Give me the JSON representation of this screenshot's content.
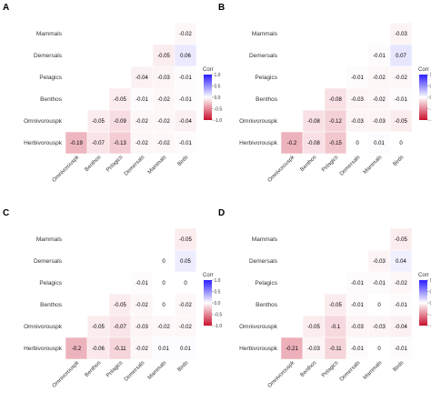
{
  "chart_data": [
    {
      "type": "heatmap",
      "panel": "A",
      "rows": [
        "Mammals",
        "Demersals",
        "Pelagics",
        "Benthos",
        "Omnivorouspk",
        "Herbivorouspk"
      ],
      "columns": [
        "Omnivorouspk",
        "Benthos",
        "Pelagics",
        "Demersals",
        "Mammals",
        "Birds"
      ],
      "cells": [
        {
          "row": "Mammals",
          "col": "Birds",
          "label": "-0.02",
          "value": -0.02
        },
        {
          "row": "Demersals",
          "col": "Mammals",
          "label": "-0.05",
          "value": -0.05
        },
        {
          "row": "Demersals",
          "col": "Birds",
          "label": "0.06",
          "value": 0.06
        },
        {
          "row": "Pelagics",
          "col": "Demersals",
          "label": "-0.04",
          "value": -0.04
        },
        {
          "row": "Pelagics",
          "col": "Mammals",
          "label": "-0.03",
          "value": -0.03
        },
        {
          "row": "Pelagics",
          "col": "Birds",
          "label": "-0.01",
          "value": -0.01
        },
        {
          "row": "Benthos",
          "col": "Pelagics",
          "label": "-0.05",
          "value": -0.05
        },
        {
          "row": "Benthos",
          "col": "Demersals",
          "label": "-0.01",
          "value": -0.01
        },
        {
          "row": "Benthos",
          "col": "Mammals",
          "label": "-0.02",
          "value": -0.02
        },
        {
          "row": "Benthos",
          "col": "Birds",
          "label": "-0.01",
          "value": -0.01
        },
        {
          "row": "Omnivorouspk",
          "col": "Benthos",
          "label": "-0.05",
          "value": -0.05
        },
        {
          "row": "Omnivorouspk",
          "col": "Pelagics",
          "label": "-0.09",
          "value": -0.09
        },
        {
          "row": "Omnivorouspk",
          "col": "Demersals",
          "label": "-0.02",
          "value": -0.02
        },
        {
          "row": "Omnivorouspk",
          "col": "Mammals",
          "label": "-0.02",
          "value": -0.02
        },
        {
          "row": "Omnivorouspk",
          "col": "Birds",
          "label": "-0.04",
          "value": -0.04
        },
        {
          "row": "Herbivorouspk",
          "col": "Omnivorouspk",
          "label": "-0.19",
          "value": -0.19
        },
        {
          "row": "Herbivorouspk",
          "col": "Benthos",
          "label": "-0.07",
          "value": -0.07
        },
        {
          "row": "Herbivorouspk",
          "col": "Pelagics",
          "label": "-0.13",
          "value": -0.13
        },
        {
          "row": "Herbivorouspk",
          "col": "Demersals",
          "label": "-0.02",
          "value": -0.02
        },
        {
          "row": "Herbivorouspk",
          "col": "Mammals",
          "label": "-0.02",
          "value": -0.02
        },
        {
          "row": "Herbivorouspk",
          "col": "Birds",
          "label": "-0.01",
          "value": -0.01
        }
      ],
      "legend": {
        "title": "Corr",
        "ticks": [
          "1.0",
          "0.5",
          "0.0",
          "-0.5",
          "-1.0"
        ],
        "range": [
          -1,
          1
        ]
      }
    },
    {
      "type": "heatmap",
      "panel": "B",
      "rows": [
        "Mammals",
        "Demersals",
        "Pelagics",
        "Benthos",
        "Omnivorouspk",
        "Herbivorouspk"
      ],
      "columns": [
        "Omnivorouspk",
        "Benthos",
        "Pelagics",
        "Demersals",
        "Mammals",
        "Birds"
      ],
      "cells": [
        {
          "row": "Mammals",
          "col": "Birds",
          "label": "-0.03",
          "value": -0.03
        },
        {
          "row": "Demersals",
          "col": "Mammals",
          "label": "-0.01",
          "value": -0.01
        },
        {
          "row": "Demersals",
          "col": "Birds",
          "label": "0.07",
          "value": 0.07
        },
        {
          "row": "Pelagics",
          "col": "Demersals",
          "label": "-0.01",
          "value": -0.01
        },
        {
          "row": "Pelagics",
          "col": "Mammals",
          "label": "-0.02",
          "value": -0.02
        },
        {
          "row": "Pelagics",
          "col": "Birds",
          "label": "-0.02",
          "value": -0.02
        },
        {
          "row": "Benthos",
          "col": "Pelagics",
          "label": "-0.08",
          "value": -0.08
        },
        {
          "row": "Benthos",
          "col": "Demersals",
          "label": "-0.03",
          "value": -0.03
        },
        {
          "row": "Benthos",
          "col": "Mammals",
          "label": "-0.02",
          "value": -0.02
        },
        {
          "row": "Benthos",
          "col": "Birds",
          "label": "-0.01",
          "value": -0.01
        },
        {
          "row": "Omnivorouspk",
          "col": "Benthos",
          "label": "-0.08",
          "value": -0.08
        },
        {
          "row": "Omnivorouspk",
          "col": "Pelagics",
          "label": "-0.12",
          "value": -0.12
        },
        {
          "row": "Omnivorouspk",
          "col": "Demersals",
          "label": "-0.03",
          "value": -0.03
        },
        {
          "row": "Omnivorouspk",
          "col": "Mammals",
          "label": "-0.03",
          "value": -0.03
        },
        {
          "row": "Omnivorouspk",
          "col": "Birds",
          "label": "-0.05",
          "value": -0.05
        },
        {
          "row": "Herbivorouspk",
          "col": "Omnivorouspk",
          "label": "-0.2",
          "value": -0.2
        },
        {
          "row": "Herbivorouspk",
          "col": "Benthos",
          "label": "-0.08",
          "value": -0.08
        },
        {
          "row": "Herbivorouspk",
          "col": "Pelagics",
          "label": "-0.15",
          "value": -0.15
        },
        {
          "row": "Herbivorouspk",
          "col": "Demersals",
          "label": "0",
          "value": 0
        },
        {
          "row": "Herbivorouspk",
          "col": "Mammals",
          "label": "0.01",
          "value": 0.01
        },
        {
          "row": "Herbivorouspk",
          "col": "Birds",
          "label": "0",
          "value": 0
        }
      ],
      "legend": {
        "title": "Corr",
        "ticks": [
          "1.0",
          "0.5",
          "0.0",
          "-0.5",
          "-1.0"
        ],
        "range": [
          -1,
          1
        ]
      }
    },
    {
      "type": "heatmap",
      "panel": "C",
      "rows": [
        "Mammals",
        "Demersals",
        "Pelagics",
        "Benthos",
        "Omnivorouspk",
        "Herbivorouspk"
      ],
      "columns": [
        "Omnivorouspk",
        "Benthos",
        "Pelagics",
        "Demersals",
        "Mammals",
        "Birds"
      ],
      "cells": [
        {
          "row": "Mammals",
          "col": "Birds",
          "label": "-0.05",
          "value": -0.05
        },
        {
          "row": "Demersals",
          "col": "Mammals",
          "label": "0",
          "value": 0
        },
        {
          "row": "Demersals",
          "col": "Birds",
          "label": "0.05",
          "value": 0.05
        },
        {
          "row": "Pelagics",
          "col": "Demersals",
          "label": "-0.01",
          "value": -0.01
        },
        {
          "row": "Pelagics",
          "col": "Mammals",
          "label": "0",
          "value": 0
        },
        {
          "row": "Pelagics",
          "col": "Birds",
          "label": "0",
          "value": 0
        },
        {
          "row": "Benthos",
          "col": "Pelagics",
          "label": "-0.05",
          "value": -0.05
        },
        {
          "row": "Benthos",
          "col": "Demersals",
          "label": "-0.02",
          "value": -0.02
        },
        {
          "row": "Benthos",
          "col": "Mammals",
          "label": "0",
          "value": 0
        },
        {
          "row": "Benthos",
          "col": "Birds",
          "label": "-0.02",
          "value": -0.02
        },
        {
          "row": "Omnivorouspk",
          "col": "Benthos",
          "label": "-0.05",
          "value": -0.05
        },
        {
          "row": "Omnivorouspk",
          "col": "Pelagics",
          "label": "-0.07",
          "value": -0.07
        },
        {
          "row": "Omnivorouspk",
          "col": "Demersals",
          "label": "-0.03",
          "value": -0.03
        },
        {
          "row": "Omnivorouspk",
          "col": "Mammals",
          "label": "-0.02",
          "value": -0.02
        },
        {
          "row": "Omnivorouspk",
          "col": "Birds",
          "label": "-0.02",
          "value": -0.02
        },
        {
          "row": "Herbivorouspk",
          "col": "Omnivorouspk",
          "label": "-0.2",
          "value": -0.2
        },
        {
          "row": "Herbivorouspk",
          "col": "Benthos",
          "label": "-0.06",
          "value": -0.06
        },
        {
          "row": "Herbivorouspk",
          "col": "Pelagics",
          "label": "-0.11",
          "value": -0.11
        },
        {
          "row": "Herbivorouspk",
          "col": "Demersals",
          "label": "-0.02",
          "value": -0.02
        },
        {
          "row": "Herbivorouspk",
          "col": "Mammals",
          "label": "0.01",
          "value": 0.01
        },
        {
          "row": "Herbivorouspk",
          "col": "Birds",
          "label": "0.01",
          "value": 0.01
        }
      ],
      "legend": {
        "title": "Corr",
        "ticks": [
          "1.0",
          "0.5",
          "0.0",
          "-0.5",
          "-1.0"
        ],
        "range": [
          -1,
          1
        ]
      }
    },
    {
      "type": "heatmap",
      "panel": "D",
      "rows": [
        "Mammals",
        "Demersals",
        "Pelagics",
        "Benthos",
        "Omnivorouspk",
        "Herbivorouspk"
      ],
      "columns": [
        "Omnivorouspk",
        "Benthos",
        "Pelagics",
        "Demersals",
        "Mammals",
        "Birds"
      ],
      "cells": [
        {
          "row": "Mammals",
          "col": "Birds",
          "label": "-0.05",
          "value": -0.05
        },
        {
          "row": "Demersals",
          "col": "Mammals",
          "label": "-0.03",
          "value": -0.03
        },
        {
          "row": "Demersals",
          "col": "Birds",
          "label": "0.04",
          "value": 0.04
        },
        {
          "row": "Pelagics",
          "col": "Demersals",
          "label": "-0.01",
          "value": -0.01
        },
        {
          "row": "Pelagics",
          "col": "Mammals",
          "label": "-0.01",
          "value": -0.01
        },
        {
          "row": "Pelagics",
          "col": "Birds",
          "label": "-0.02",
          "value": -0.02
        },
        {
          "row": "Benthos",
          "col": "Pelagics",
          "label": "-0.05",
          "value": -0.05
        },
        {
          "row": "Benthos",
          "col": "Demersals",
          "label": "-0.01",
          "value": -0.01
        },
        {
          "row": "Benthos",
          "col": "Mammals",
          "label": "0",
          "value": 0
        },
        {
          "row": "Benthos",
          "col": "Birds",
          "label": "-0.01",
          "value": -0.01
        },
        {
          "row": "Omnivorouspk",
          "col": "Benthos",
          "label": "-0.05",
          "value": -0.05
        },
        {
          "row": "Omnivorouspk",
          "col": "Pelagics",
          "label": "-0.1",
          "value": -0.1
        },
        {
          "row": "Omnivorouspk",
          "col": "Demersals",
          "label": "-0.03",
          "value": -0.03
        },
        {
          "row": "Omnivorouspk",
          "col": "Mammals",
          "label": "-0.03",
          "value": -0.03
        },
        {
          "row": "Omnivorouspk",
          "col": "Birds",
          "label": "-0.04",
          "value": -0.04
        },
        {
          "row": "Herbivorouspk",
          "col": "Omnivorouspk",
          "label": "-0.21",
          "value": -0.21
        },
        {
          "row": "Herbivorouspk",
          "col": "Benthos",
          "label": "-0.03",
          "value": -0.03
        },
        {
          "row": "Herbivorouspk",
          "col": "Pelagics",
          "label": "-0.11",
          "value": -0.11
        },
        {
          "row": "Herbivorouspk",
          "col": "Demersals",
          "label": "-0.01",
          "value": -0.01
        },
        {
          "row": "Herbivorouspk",
          "col": "Mammals",
          "label": "0",
          "value": 0
        },
        {
          "row": "Herbivorouspk",
          "col": "Birds",
          "label": "-0.01",
          "value": -0.01
        }
      ],
      "legend": {
        "title": "Corr",
        "ticks": [
          "1.0",
          "0.5",
          "0.0",
          "-0.5",
          "-1.0"
        ],
        "range": [
          -1,
          1
        ]
      }
    }
  ],
  "colors": {
    "positive": "#2b1cff",
    "neutral": "#ffffff",
    "negative": "#c8102e"
  }
}
